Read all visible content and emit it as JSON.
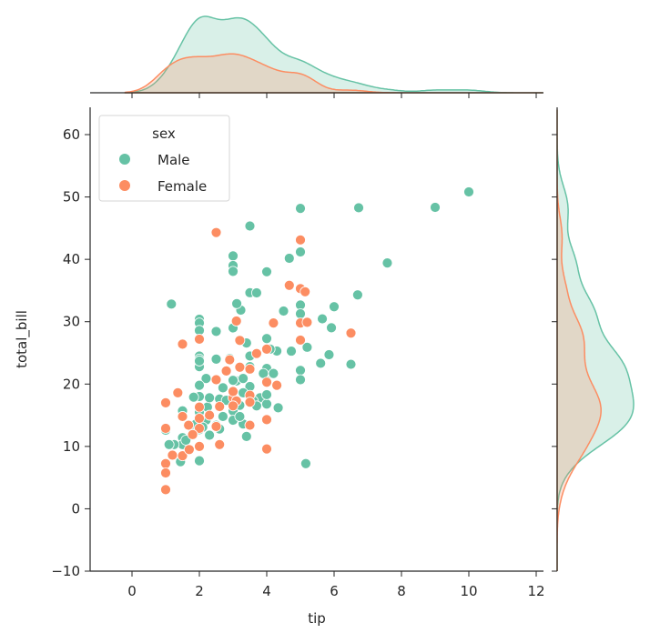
{
  "chart_data": {
    "type": "scatter",
    "subtype": "jointplot with marginal KDE",
    "xlabel": "tip",
    "ylabel": "total_bill",
    "xlim": [
      -1.2,
      12.2
    ],
    "ylim": [
      -10,
      64
    ],
    "xticks": [
      0,
      2,
      4,
      6,
      8,
      10,
      12
    ],
    "yticks": [
      -10,
      0,
      10,
      20,
      30,
      40,
      50,
      60
    ],
    "grid": false,
    "legend": {
      "title": "sex",
      "placement": "top-left",
      "entries": [
        "Male",
        "Female"
      ]
    },
    "colors": {
      "Male": "#66c2a5",
      "Female": "#fc8d62"
    },
    "series": [
      {
        "name": "Male",
        "points": [
          [
            10,
            50.81
          ],
          [
            9,
            48.33
          ],
          [
            6.73,
            48.27
          ],
          [
            5,
            48.17
          ],
          [
            7.58,
            39.42
          ],
          [
            3.5,
            45.35
          ],
          [
            5,
            41.19
          ],
          [
            4.67,
            40.17
          ],
          [
            3,
            40.55
          ],
          [
            3,
            39
          ],
          [
            3,
            38.07
          ],
          [
            4,
            38.01
          ],
          [
            1.17,
            32.83
          ],
          [
            3.23,
            31.85
          ],
          [
            3.11,
            32.9
          ],
          [
            3.5,
            34.65
          ],
          [
            3.7,
            34.63
          ],
          [
            5,
            32.68
          ],
          [
            5,
            31.27
          ],
          [
            6,
            32.4
          ],
          [
            6.7,
            34.3
          ],
          [
            5.2,
            25.9
          ],
          [
            5,
            22.2
          ],
          [
            5,
            20.7
          ],
          [
            5.16,
            7.25
          ],
          [
            6.5,
            23.17
          ],
          [
            5.6,
            23.33
          ],
          [
            5.85,
            24.71
          ],
          [
            5.65,
            30.46
          ],
          [
            5.92,
            29.03
          ],
          [
            4.73,
            25.28
          ],
          [
            4.3,
            25.29
          ],
          [
            4.5,
            31.71
          ],
          [
            3.4,
            26.59
          ],
          [
            2.5,
            28.44
          ],
          [
            2,
            30.4
          ],
          [
            2,
            29.8
          ],
          [
            2,
            28.6
          ],
          [
            3,
            29.0
          ],
          [
            2,
            24.5
          ],
          [
            2,
            24.0
          ],
          [
            2,
            22.8
          ],
          [
            2,
            23.7
          ],
          [
            2.2,
            20.9
          ],
          [
            2,
            19.8
          ],
          [
            2,
            18
          ],
          [
            2,
            15.5
          ],
          [
            2,
            14
          ],
          [
            2,
            12.7
          ],
          [
            2,
            7.7
          ],
          [
            2.24,
            16.3
          ],
          [
            1.5,
            15.7
          ],
          [
            1.66,
            13.4
          ],
          [
            1.5,
            11.4
          ],
          [
            1.5,
            10.3
          ],
          [
            1.44,
            7.56
          ],
          [
            1.25,
            10.3
          ],
          [
            1.0,
            12.6
          ],
          [
            1.1,
            10.3
          ],
          [
            1.83,
            17.9
          ],
          [
            2.5,
            24
          ],
          [
            2.6,
            17.6
          ],
          [
            2.7,
            14.8
          ],
          [
            2.3,
            11.8
          ],
          [
            3,
            15.7
          ],
          [
            3,
            14.2
          ],
          [
            3.3,
            13.6
          ],
          [
            3.4,
            11.6
          ],
          [
            3.5,
            19.6
          ],
          [
            3.5,
            22.8
          ],
          [
            3.5,
            24.5
          ],
          [
            3.8,
            17.8
          ],
          [
            4,
            20.5
          ],
          [
            4,
            16.8
          ],
          [
            4,
            18.3
          ],
          [
            4,
            27.3
          ],
          [
            4,
            22.5
          ],
          [
            4.2,
            21.7
          ],
          [
            3.6,
            17.3
          ],
          [
            3.1,
            20.5
          ],
          [
            3.2,
            16.6
          ],
          [
            2.8,
            17.4
          ],
          [
            3,
            20.6
          ],
          [
            2.9,
            24.1
          ],
          [
            3.9,
            21.7
          ],
          [
            4.1,
            25.6
          ],
          [
            4.34,
            16.2
          ],
          [
            3.3,
            20.9
          ],
          [
            2.5,
            13.4
          ],
          [
            1.8,
            12.1
          ],
          [
            2.2,
            14.2
          ],
          [
            3.2,
            14.8
          ],
          [
            2.6,
            12.8
          ],
          [
            2.1,
            13.1
          ],
          [
            1.6,
            11.0
          ],
          [
            3.3,
            18.6
          ],
          [
            2.7,
            19.4
          ],
          [
            3.7,
            16.5
          ],
          [
            2.3,
            17.8
          ],
          [
            1.9,
            13.6
          ]
        ]
      },
      {
        "name": "Female",
        "points": [
          [
            2.5,
            44.3
          ],
          [
            5,
            43.11
          ],
          [
            5,
            35.3
          ],
          [
            5.14,
            34.8
          ],
          [
            4.67,
            35.83
          ],
          [
            5.0,
            29.8
          ],
          [
            5.2,
            29.9
          ],
          [
            6.5,
            28.17
          ],
          [
            4.2,
            29.8
          ],
          [
            3.1,
            30.1
          ],
          [
            3.2,
            27.0
          ],
          [
            1.5,
            26.4
          ],
          [
            2,
            27.2
          ],
          [
            4,
            25.6
          ],
          [
            3.7,
            24.9
          ],
          [
            3.5,
            22.4
          ],
          [
            3.5,
            18.2
          ],
          [
            3.5,
            17.1
          ],
          [
            3.2,
            22.7
          ],
          [
            2.9,
            23.9
          ],
          [
            2.8,
            22.1
          ],
          [
            2.5,
            20.7
          ],
          [
            2.6,
            16.4
          ],
          [
            2.5,
            13.2
          ],
          [
            2.6,
            10.3
          ],
          [
            3,
            17.8
          ],
          [
            3,
            18.8
          ],
          [
            3.1,
            17.3
          ],
          [
            3.5,
            13.4
          ],
          [
            4,
            14.3
          ],
          [
            4,
            9.6
          ],
          [
            4.3,
            19.8
          ],
          [
            4,
            20.3
          ],
          [
            5,
            27.05
          ],
          [
            2,
            16.3
          ],
          [
            2,
            14.5
          ],
          [
            2,
            12.9
          ],
          [
            2,
            10
          ],
          [
            1.68,
            13.4
          ],
          [
            1.8,
            11.9
          ],
          [
            1.5,
            14.8
          ],
          [
            1.36,
            18.6
          ],
          [
            1,
            17
          ],
          [
            1,
            12.9
          ],
          [
            1.2,
            8.6
          ],
          [
            1,
            7.25
          ],
          [
            1,
            5.75
          ],
          [
            1,
            3.07
          ],
          [
            1.5,
            8.5
          ],
          [
            1.7,
            9.5
          ],
          [
            2.3,
            15
          ],
          [
            3,
            16.5
          ]
        ]
      }
    ]
  }
}
